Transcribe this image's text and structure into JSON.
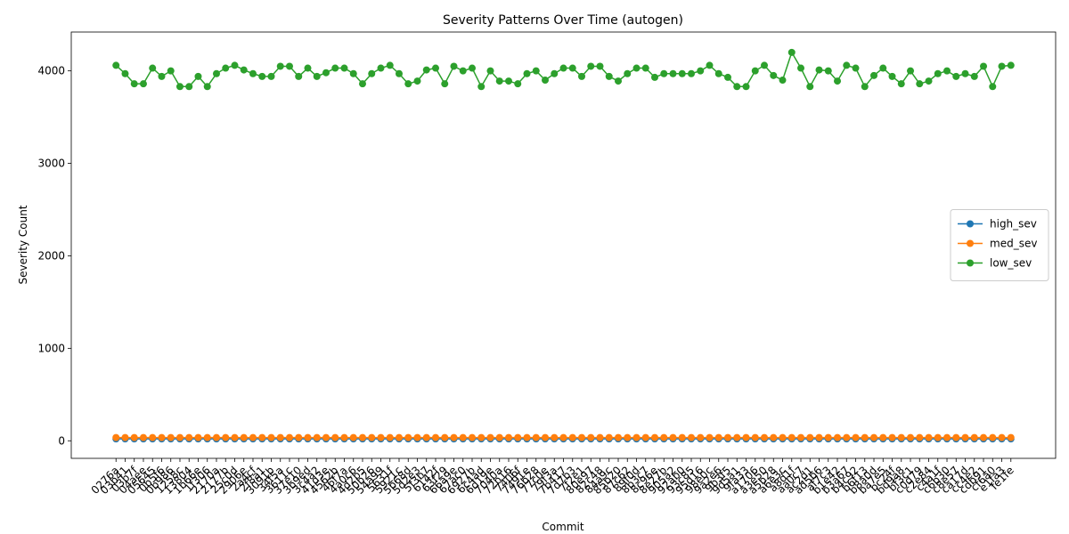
{
  "chart_data": {
    "type": "line",
    "title": "Severity Patterns Over Time (autogen)",
    "x_label": "Commit",
    "y_label": "Severity Count",
    "categories": [
      "0276a",
      "03b41",
      "03b7f",
      "04aee",
      "05645",
      "0b5f6",
      "0b986",
      "1258c",
      "13804",
      "1b66e",
      "1f306",
      "2170a",
      "2177b",
      "25c0d",
      "2906e",
      "2a4cf",
      "2f8a1",
      "3091b",
      "34f5a",
      "3611c",
      "37e10",
      "3b9ed",
      "3c4a2",
      "41d3e",
      "4562b",
      "46f7a",
      "4a0c6",
      "4d2b5",
      "50b26",
      "54a99",
      "5631f",
      "5921c",
      "5b68d",
      "5d2e3",
      "5f3b7",
      "6142f",
      "63f29",
      "66a9e",
      "67ac0",
      "6927b",
      "6c4ad",
      "6d19e",
      "7040a",
      "72b16",
      "7406f",
      "7491e",
      "76b28",
      "77c0e",
      "79f3a",
      "7b417",
      "7d7b3",
      "7f2e1",
      "80e97",
      "82c48",
      "84a9c",
      "85b20",
      "87c62",
      "89f0d",
      "8b3c7",
      "8c96e",
      "8e27b",
      "905a2",
      "92ab0",
      "93c85",
      "95d16",
      "98e0c",
      "9a2e6",
      "9b3f5",
      "9d5a1",
      "9fa33",
      "a1706",
      "a3e50",
      "a5b28",
      "a6e3c",
      "a8d1f",
      "aa0c7",
      "ac2d1",
      "ad5b6",
      "af7c3",
      "b1e42",
      "b3a67",
      "b4c92",
      "b6f13",
      "b8a0d",
      "ba7e5",
      "bc24f",
      "bd9a8",
      "bf3c1",
      "c0d79",
      "c2e84",
      "c4a1f",
      "c6b30",
      "c8e57",
      "ca17d",
      "cc4e2",
      "cdb91",
      "cf6a0",
      "e1fa3",
      "fe1fe"
    ],
    "series": [
      {
        "name": "high_sev",
        "color": "#1f77b4",
        "values": [
          20,
          20,
          20,
          20,
          20,
          20,
          20,
          20,
          20,
          20,
          20,
          20,
          20,
          20,
          20,
          20,
          20,
          20,
          20,
          20,
          20,
          20,
          20,
          20,
          20,
          20,
          20,
          20,
          20,
          20,
          20,
          20,
          20,
          20,
          20,
          20,
          20,
          20,
          20,
          20,
          20,
          20,
          20,
          20,
          20,
          20,
          20,
          20,
          20,
          20,
          20,
          20,
          20,
          20,
          20,
          20,
          20,
          20,
          20,
          20,
          20,
          20,
          20,
          20,
          20,
          20,
          20,
          20,
          20,
          20,
          20,
          20,
          20,
          20,
          20,
          20,
          20,
          20,
          20,
          20,
          20,
          20,
          20,
          20,
          20,
          20,
          20,
          20,
          20,
          20,
          20,
          20,
          20,
          20,
          20,
          20,
          20,
          20,
          20
        ]
      },
      {
        "name": "med_sev",
        "color": "#ff7f0e",
        "values": [
          35,
          35,
          35,
          35,
          35,
          35,
          35,
          35,
          35,
          35,
          35,
          35,
          35,
          35,
          35,
          35,
          35,
          35,
          35,
          35,
          35,
          35,
          35,
          35,
          35,
          35,
          35,
          35,
          35,
          35,
          35,
          35,
          35,
          35,
          35,
          35,
          35,
          35,
          35,
          35,
          35,
          35,
          35,
          35,
          35,
          35,
          35,
          35,
          35,
          35,
          35,
          35,
          35,
          35,
          35,
          35,
          35,
          35,
          35,
          35,
          35,
          35,
          35,
          35,
          35,
          35,
          35,
          35,
          35,
          35,
          35,
          35,
          35,
          35,
          35,
          35,
          35,
          35,
          35,
          35,
          35,
          35,
          35,
          35,
          35,
          35,
          35,
          35,
          35,
          35,
          35,
          35,
          35,
          35,
          35,
          35,
          35,
          35,
          35
        ]
      },
      {
        "name": "low_sev",
        "color": "#2ca02c",
        "values": [
          4060,
          3970,
          3860,
          3860,
          4030,
          3940,
          4000,
          3830,
          3830,
          3940,
          3830,
          3970,
          4030,
          4060,
          4010,
          3970,
          3940,
          3940,
          4050,
          4050,
          3940,
          4030,
          3940,
          3980,
          4030,
          4030,
          3970,
          3860,
          3970,
          4030,
          4060,
          3970,
          3860,
          3890,
          4010,
          4030,
          3860,
          4050,
          4000,
          4030,
          3830,
          4000,
          3890,
          3890,
          3860,
          3970,
          4000,
          3900,
          3970,
          4030,
          4030,
          3940,
          4050,
          4050,
          3940,
          3890,
          3970,
          4030,
          4030,
          3930,
          3970,
          3970,
          3970,
          3970,
          4000,
          4060,
          3970,
          3930,
          3830,
          3830,
          4000,
          4060,
          3950,
          3900,
          4200,
          4030,
          3830,
          4010,
          4000,
          3890,
          4060,
          4030,
          3830,
          3950,
          4030,
          3940,
          3860,
          4000,
          3860,
          3890,
          3970,
          4000,
          3940,
          3970,
          3940,
          4050,
          3830,
          4050,
          4060
        ]
      }
    ],
    "ylim": [
      -190,
      4420
    ],
    "yticks": [
      0,
      1000,
      2000,
      3000,
      4000
    ],
    "legend": "center right"
  }
}
